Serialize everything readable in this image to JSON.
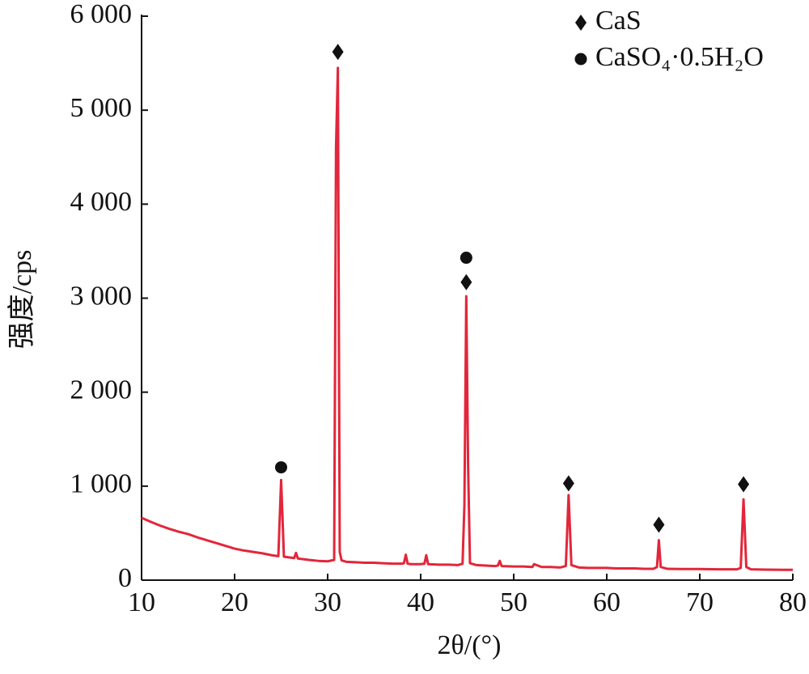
{
  "chart_data": {
    "type": "line",
    "x_label": "2θ/(°)",
    "y_label": "强度/cps",
    "x": [
      10,
      11,
      12,
      13,
      14,
      15,
      16,
      17,
      18,
      19,
      20,
      21,
      22,
      23,
      24,
      24.7,
      25,
      25.3,
      26,
      26.4,
      26.6,
      26.8,
      28,
      29,
      30,
      30.7,
      30.9,
      31.1,
      31.3,
      31.5,
      32,
      33,
      34,
      35,
      36,
      37,
      38,
      38.2,
      38.4,
      38.6,
      39,
      40,
      40.4,
      40.6,
      40.8,
      42,
      43,
      44,
      44.5,
      44.7,
      44.9,
      45.1,
      45.3,
      46,
      47,
      48,
      48.3,
      48.5,
      48.7,
      50,
      51,
      52,
      52.2,
      53,
      54,
      55,
      55.6,
      55.9,
      56.2,
      57,
      58,
      59,
      60,
      61,
      62,
      63,
      64,
      65,
      65.4,
      65.6,
      65.8,
      66.5,
      68,
      70,
      72,
      74,
      74.4,
      74.7,
      75,
      75.5,
      77,
      79,
      80
    ],
    "series": [
      {
        "color": "#e3263a",
        "values": [
          663,
          620,
          580,
          545,
          515,
          490,
          455,
          425,
          395,
          365,
          335,
          315,
          300,
          285,
          265,
          255,
          1065,
          250,
          240,
          235,
          290,
          230,
          215,
          205,
          200,
          215,
          4600,
          5450,
          300,
          210,
          195,
          190,
          185,
          185,
          180,
          175,
          175,
          180,
          270,
          175,
          170,
          170,
          175,
          265,
          170,
          165,
          165,
          160,
          175,
          800,
          3020,
          1200,
          180,
          160,
          155,
          150,
          155,
          205,
          150,
          145,
          145,
          140,
          170,
          140,
          140,
          135,
          150,
          905,
          160,
          135,
          130,
          130,
          130,
          125,
          125,
          125,
          120,
          120,
          140,
          425,
          140,
          120,
          118,
          118,
          115,
          115,
          130,
          860,
          140,
          115,
          112,
          110,
          110
        ]
      }
    ],
    "xlim": [
      10,
      80
    ],
    "xticks": [
      10,
      20,
      30,
      40,
      50,
      60,
      70,
      80
    ],
    "ylim": [
      0,
      6000
    ],
    "yticks": [
      0,
      {
        "value": 1000,
        "label": "1 000"
      },
      {
        "value": 2000,
        "label": "2 000"
      },
      {
        "value": 3000,
        "label": "3 000"
      },
      {
        "value": 4000,
        "label": "4 000"
      },
      {
        "value": 5000,
        "label": "5 000"
      },
      {
        "value": 6000,
        "label": "6 000"
      }
    ],
    "legend": [
      {
        "name": "CaS",
        "symbol": "diamond"
      },
      {
        "name": "CaSO₄·0.5H₂O",
        "symbol": "circle"
      }
    ],
    "legend_position": "upper right",
    "markers": [
      {
        "x": 25.0,
        "y": 1200,
        "symbol": "circle"
      },
      {
        "x": 31.1,
        "y": 5620,
        "symbol": "diamond"
      },
      {
        "x": 44.9,
        "y": 3170,
        "symbol": "diamond"
      },
      {
        "x": 44.9,
        "y": 3430,
        "symbol": "circle"
      },
      {
        "x": 55.9,
        "y": 1030,
        "symbol": "diamond"
      },
      {
        "x": 65.6,
        "y": 590,
        "symbol": "diamond"
      },
      {
        "x": 74.7,
        "y": 1020,
        "symbol": "diamond"
      }
    ]
  }
}
